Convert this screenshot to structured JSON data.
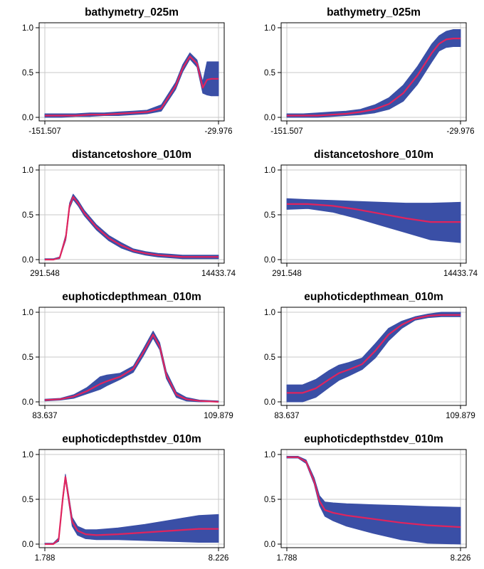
{
  "colors": {
    "band": "#3a4fa6",
    "line": "#e0245e",
    "grid": "#c8c8c8",
    "axis": "#000000",
    "background": "#ffffff"
  },
  "chart_data": [
    {
      "type": "area",
      "title": "bathymetry_025m",
      "xlim": [
        -151.507,
        -29.976
      ],
      "ylim": [
        0,
        1
      ],
      "xticks": [
        "-151.507",
        "-29.976"
      ],
      "yticks": [
        "0.0",
        "0.5",
        "1.0"
      ],
      "grid": true,
      "legend": "none",
      "x": [
        -151.507,
        -140,
        -130,
        -120,
        -110,
        -100,
        -90,
        -80,
        -70,
        -60,
        -55,
        -50,
        -45,
        -41,
        -38,
        -35,
        -32,
        -29.976
      ],
      "y": [
        0.02,
        0.02,
        0.02,
        0.03,
        0.03,
        0.04,
        0.05,
        0.06,
        0.1,
        0.35,
        0.55,
        0.68,
        0.6,
        0.33,
        0.42,
        0.43,
        0.43,
        0.43
      ],
      "band_low": [
        0.0,
        0.0,
        0.01,
        0.01,
        0.02,
        0.02,
        0.03,
        0.04,
        0.07,
        0.31,
        0.51,
        0.65,
        0.56,
        0.27,
        0.25,
        0.24,
        0.24,
        0.24
      ],
      "band_high": [
        0.04,
        0.04,
        0.04,
        0.05,
        0.05,
        0.06,
        0.07,
        0.08,
        0.14,
        0.39,
        0.59,
        0.72,
        0.64,
        0.4,
        0.62,
        0.62,
        0.62,
        0.62
      ]
    },
    {
      "type": "area",
      "title": "bathymetry_025m",
      "xlim": [
        -151.507,
        -29.976
      ],
      "ylim": [
        0,
        1
      ],
      "xticks": [
        "-151.507",
        "-29.976"
      ],
      "yticks": [
        "0.0",
        "0.5",
        "1.0"
      ],
      "grid": true,
      "legend": "none",
      "x": [
        -151.507,
        -140,
        -130,
        -120,
        -110,
        -100,
        -90,
        -80,
        -70,
        -60,
        -50,
        -45,
        -40,
        -35,
        -29.976
      ],
      "y": [
        0.02,
        0.02,
        0.02,
        0.03,
        0.04,
        0.06,
        0.09,
        0.15,
        0.27,
        0.47,
        0.72,
        0.82,
        0.87,
        0.88,
        0.88
      ],
      "band_low": [
        0.0,
        0.0,
        0.0,
        0.01,
        0.02,
        0.03,
        0.05,
        0.09,
        0.18,
        0.37,
        0.62,
        0.74,
        0.78,
        0.79,
        0.79
      ],
      "band_high": [
        0.04,
        0.04,
        0.05,
        0.06,
        0.07,
        0.09,
        0.14,
        0.22,
        0.36,
        0.57,
        0.82,
        0.91,
        0.96,
        0.98,
        0.98
      ]
    },
    {
      "type": "area",
      "title": "distancetoshore_010m",
      "xlim": [
        291.548,
        14433.74
      ],
      "ylim": [
        0,
        1
      ],
      "xticks": [
        "291.548",
        "14433.74"
      ],
      "yticks": [
        "0.0",
        "0.5",
        "1.0"
      ],
      "grid": true,
      "legend": "none",
      "x": [
        291.548,
        1000,
        1500,
        2000,
        2300,
        2600,
        3000,
        3500,
        4500,
        5500,
        6500,
        7500,
        8500,
        9500,
        10500,
        11500,
        12500,
        14433.74
      ],
      "y": [
        0.0,
        0.0,
        0.02,
        0.25,
        0.6,
        0.7,
        0.63,
        0.52,
        0.36,
        0.24,
        0.16,
        0.1,
        0.07,
        0.05,
        0.04,
        0.03,
        0.03,
        0.03
      ],
      "band_low": [
        0.0,
        0.0,
        0.01,
        0.22,
        0.57,
        0.67,
        0.6,
        0.49,
        0.33,
        0.21,
        0.13,
        0.08,
        0.05,
        0.03,
        0.02,
        0.01,
        0.01,
        0.01
      ],
      "band_high": [
        0.01,
        0.01,
        0.03,
        0.28,
        0.63,
        0.73,
        0.66,
        0.55,
        0.39,
        0.27,
        0.19,
        0.12,
        0.09,
        0.07,
        0.06,
        0.05,
        0.05,
        0.05
      ]
    },
    {
      "type": "area",
      "title": "distancetoshore_010m",
      "xlim": [
        291.548,
        14433.74
      ],
      "ylim": [
        0,
        1
      ],
      "xticks": [
        "291.548",
        "14433.74"
      ],
      "yticks": [
        "0.0",
        "0.5",
        "1.0"
      ],
      "grid": true,
      "legend": "none",
      "x": [
        291.548,
        2000,
        4000,
        6000,
        8000,
        10000,
        12000,
        14433.74
      ],
      "y": [
        0.62,
        0.62,
        0.6,
        0.56,
        0.51,
        0.46,
        0.42,
        0.42
      ],
      "band_low": [
        0.56,
        0.57,
        0.53,
        0.46,
        0.38,
        0.3,
        0.22,
        0.19
      ],
      "band_high": [
        0.68,
        0.67,
        0.66,
        0.65,
        0.64,
        0.63,
        0.63,
        0.64
      ]
    },
    {
      "type": "area",
      "title": "euphoticdepthmean_010m",
      "xlim": [
        83.637,
        109.879
      ],
      "ylim": [
        0,
        1
      ],
      "xticks": [
        "83.637",
        "109.879"
      ],
      "yticks": [
        "0.0",
        "0.5",
        "1.0"
      ],
      "grid": true,
      "legend": "none",
      "x": [
        83.637,
        86,
        88,
        90,
        92,
        93,
        95,
        97,
        98.5,
        100,
        101,
        102,
        103.5,
        105,
        107,
        109.879
      ],
      "y": [
        0.02,
        0.03,
        0.06,
        0.12,
        0.2,
        0.23,
        0.28,
        0.37,
        0.55,
        0.75,
        0.62,
        0.3,
        0.08,
        0.03,
        0.01,
        0.0
      ],
      "band_low": [
        0.01,
        0.02,
        0.04,
        0.09,
        0.14,
        0.18,
        0.25,
        0.33,
        0.51,
        0.71,
        0.58,
        0.26,
        0.05,
        0.01,
        0.0,
        0.0
      ],
      "band_high": [
        0.03,
        0.04,
        0.08,
        0.16,
        0.28,
        0.3,
        0.32,
        0.4,
        0.59,
        0.79,
        0.66,
        0.34,
        0.11,
        0.05,
        0.02,
        0.01
      ]
    },
    {
      "type": "area",
      "title": "euphoticdepthmean_010m",
      "xlim": [
        83.637,
        109.879
      ],
      "ylim": [
        0,
        1
      ],
      "xticks": [
        "83.637",
        "109.879"
      ],
      "yticks": [
        "0.0",
        "0.5",
        "1.0"
      ],
      "grid": true,
      "legend": "none",
      "x": [
        83.637,
        86,
        88,
        90,
        91.5,
        93,
        95,
        97,
        99,
        101,
        103,
        105,
        107,
        109.879
      ],
      "y": [
        0.1,
        0.1,
        0.15,
        0.25,
        0.32,
        0.36,
        0.42,
        0.57,
        0.75,
        0.86,
        0.93,
        0.96,
        0.97,
        0.97
      ],
      "band_low": [
        0.0,
        0.0,
        0.05,
        0.16,
        0.24,
        0.29,
        0.36,
        0.49,
        0.68,
        0.82,
        0.91,
        0.94,
        0.95,
        0.95
      ],
      "band_high": [
        0.19,
        0.19,
        0.25,
        0.35,
        0.41,
        0.44,
        0.49,
        0.65,
        0.82,
        0.9,
        0.95,
        0.98,
        1.0,
        1.0
      ]
    },
    {
      "type": "area",
      "title": "euphoticdepthstdev_010m",
      "xlim": [
        1.788,
        8.226
      ],
      "ylim": [
        0,
        1
      ],
      "xticks": [
        "1.788",
        "8.226"
      ],
      "yticks": [
        "0.0",
        "0.5",
        "1.0"
      ],
      "grid": true,
      "legend": "none",
      "x": [
        1.788,
        2.1,
        2.3,
        2.45,
        2.55,
        2.65,
        2.8,
        3.0,
        3.3,
        3.7,
        4.5,
        5.5,
        6.5,
        7.5,
        8.226
      ],
      "y": [
        0.0,
        0.0,
        0.05,
        0.5,
        0.75,
        0.55,
        0.25,
        0.15,
        0.11,
        0.1,
        0.11,
        0.13,
        0.15,
        0.17,
        0.17
      ],
      "band_low": [
        0.0,
        0.0,
        0.03,
        0.47,
        0.72,
        0.51,
        0.2,
        0.1,
        0.06,
        0.05,
        0.05,
        0.04,
        0.03,
        0.02,
        0.02
      ],
      "band_high": [
        0.01,
        0.01,
        0.07,
        0.53,
        0.78,
        0.59,
        0.3,
        0.2,
        0.16,
        0.16,
        0.18,
        0.22,
        0.27,
        0.32,
        0.33
      ]
    },
    {
      "type": "area",
      "title": "euphoticdepthstdev_010m",
      "xlim": [
        1.788,
        8.226
      ],
      "ylim": [
        0,
        1
      ],
      "xticks": [
        "1.788",
        "8.226"
      ],
      "yticks": [
        "0.0",
        "0.5",
        "1.0"
      ],
      "grid": true,
      "legend": "none",
      "x": [
        1.788,
        2.2,
        2.5,
        2.8,
        3.0,
        3.2,
        3.5,
        4.0,
        5.0,
        6.0,
        7.0,
        8.226
      ],
      "y": [
        0.97,
        0.97,
        0.92,
        0.7,
        0.48,
        0.38,
        0.35,
        0.32,
        0.28,
        0.24,
        0.21,
        0.19
      ],
      "band_low": [
        0.96,
        0.96,
        0.9,
        0.67,
        0.43,
        0.31,
        0.26,
        0.2,
        0.12,
        0.05,
        0.01,
        0.0
      ],
      "band_high": [
        0.98,
        0.98,
        0.94,
        0.74,
        0.54,
        0.47,
        0.46,
        0.45,
        0.44,
        0.43,
        0.42,
        0.41
      ]
    }
  ]
}
